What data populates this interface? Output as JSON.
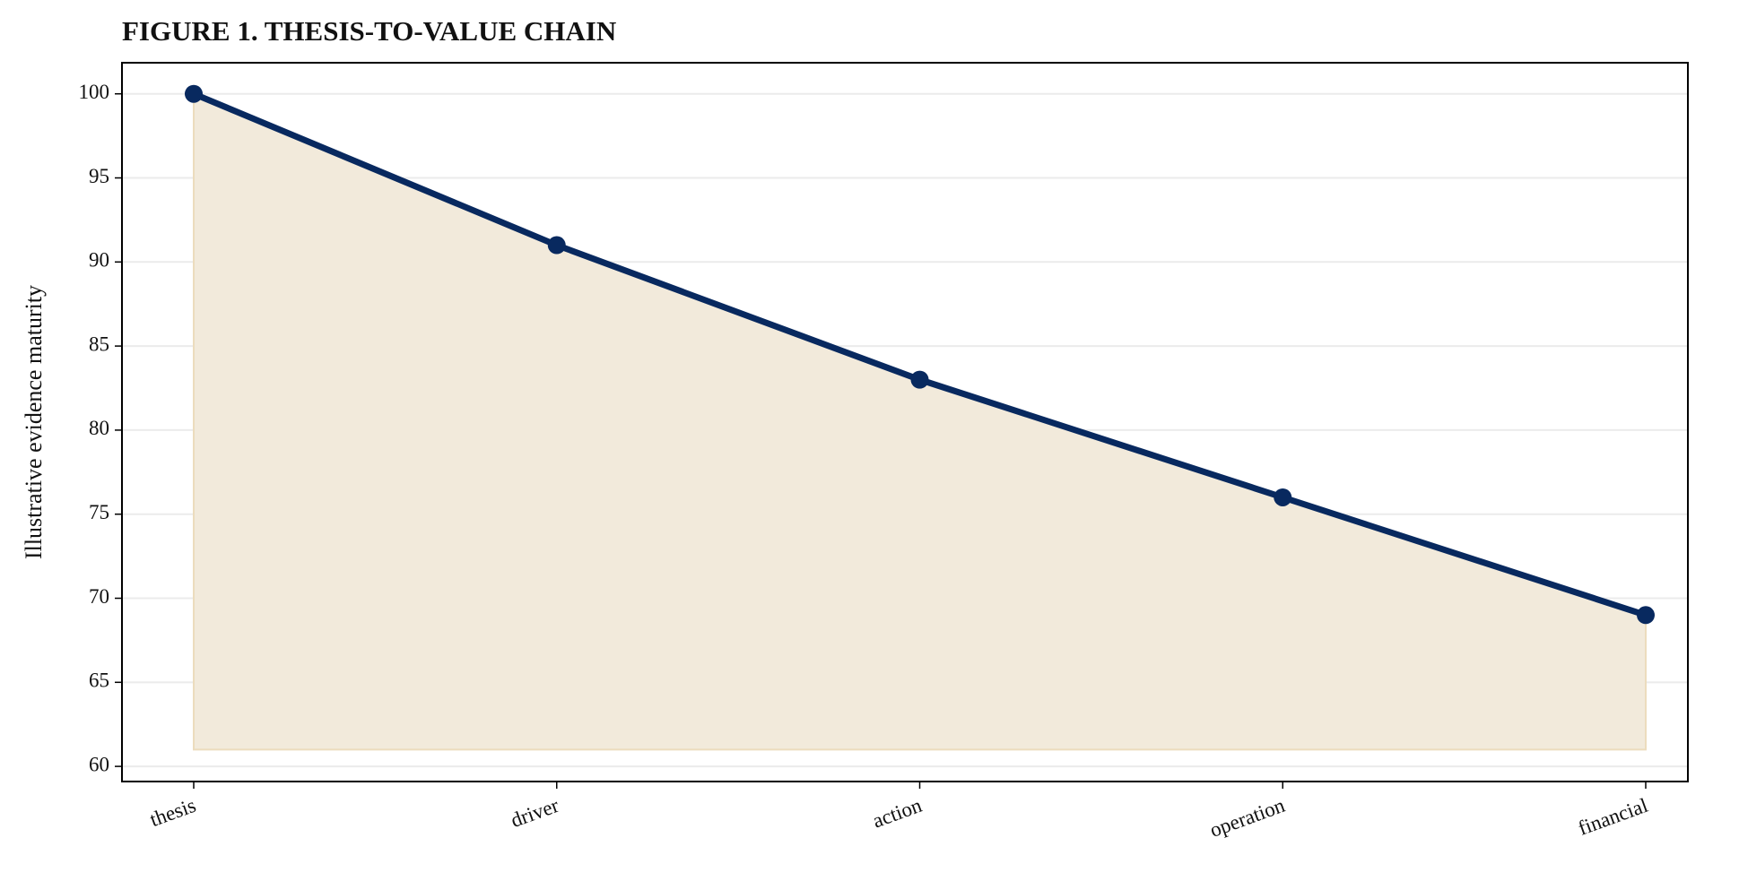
{
  "chart_data": {
    "type": "line",
    "title": "FIGURE 1. THESIS-TO-VALUE CHAIN",
    "y_label": "Illustrative evidence maturity",
    "categories": [
      "thesis",
      "driver",
      "action",
      "operation",
      "financial"
    ],
    "series": [
      {
        "name": "Illustrative evidence maturity",
        "color": "#08295f",
        "values": [
          100,
          91,
          83,
          76,
          69
        ]
      }
    ],
    "fill_color": "#f2eadb",
    "fill_base": 61,
    "ylim": [
      59.1,
      101.85
    ],
    "yticks": [
      60,
      65,
      70,
      75,
      80,
      85,
      90,
      95,
      100
    ],
    "grid": true
  }
}
